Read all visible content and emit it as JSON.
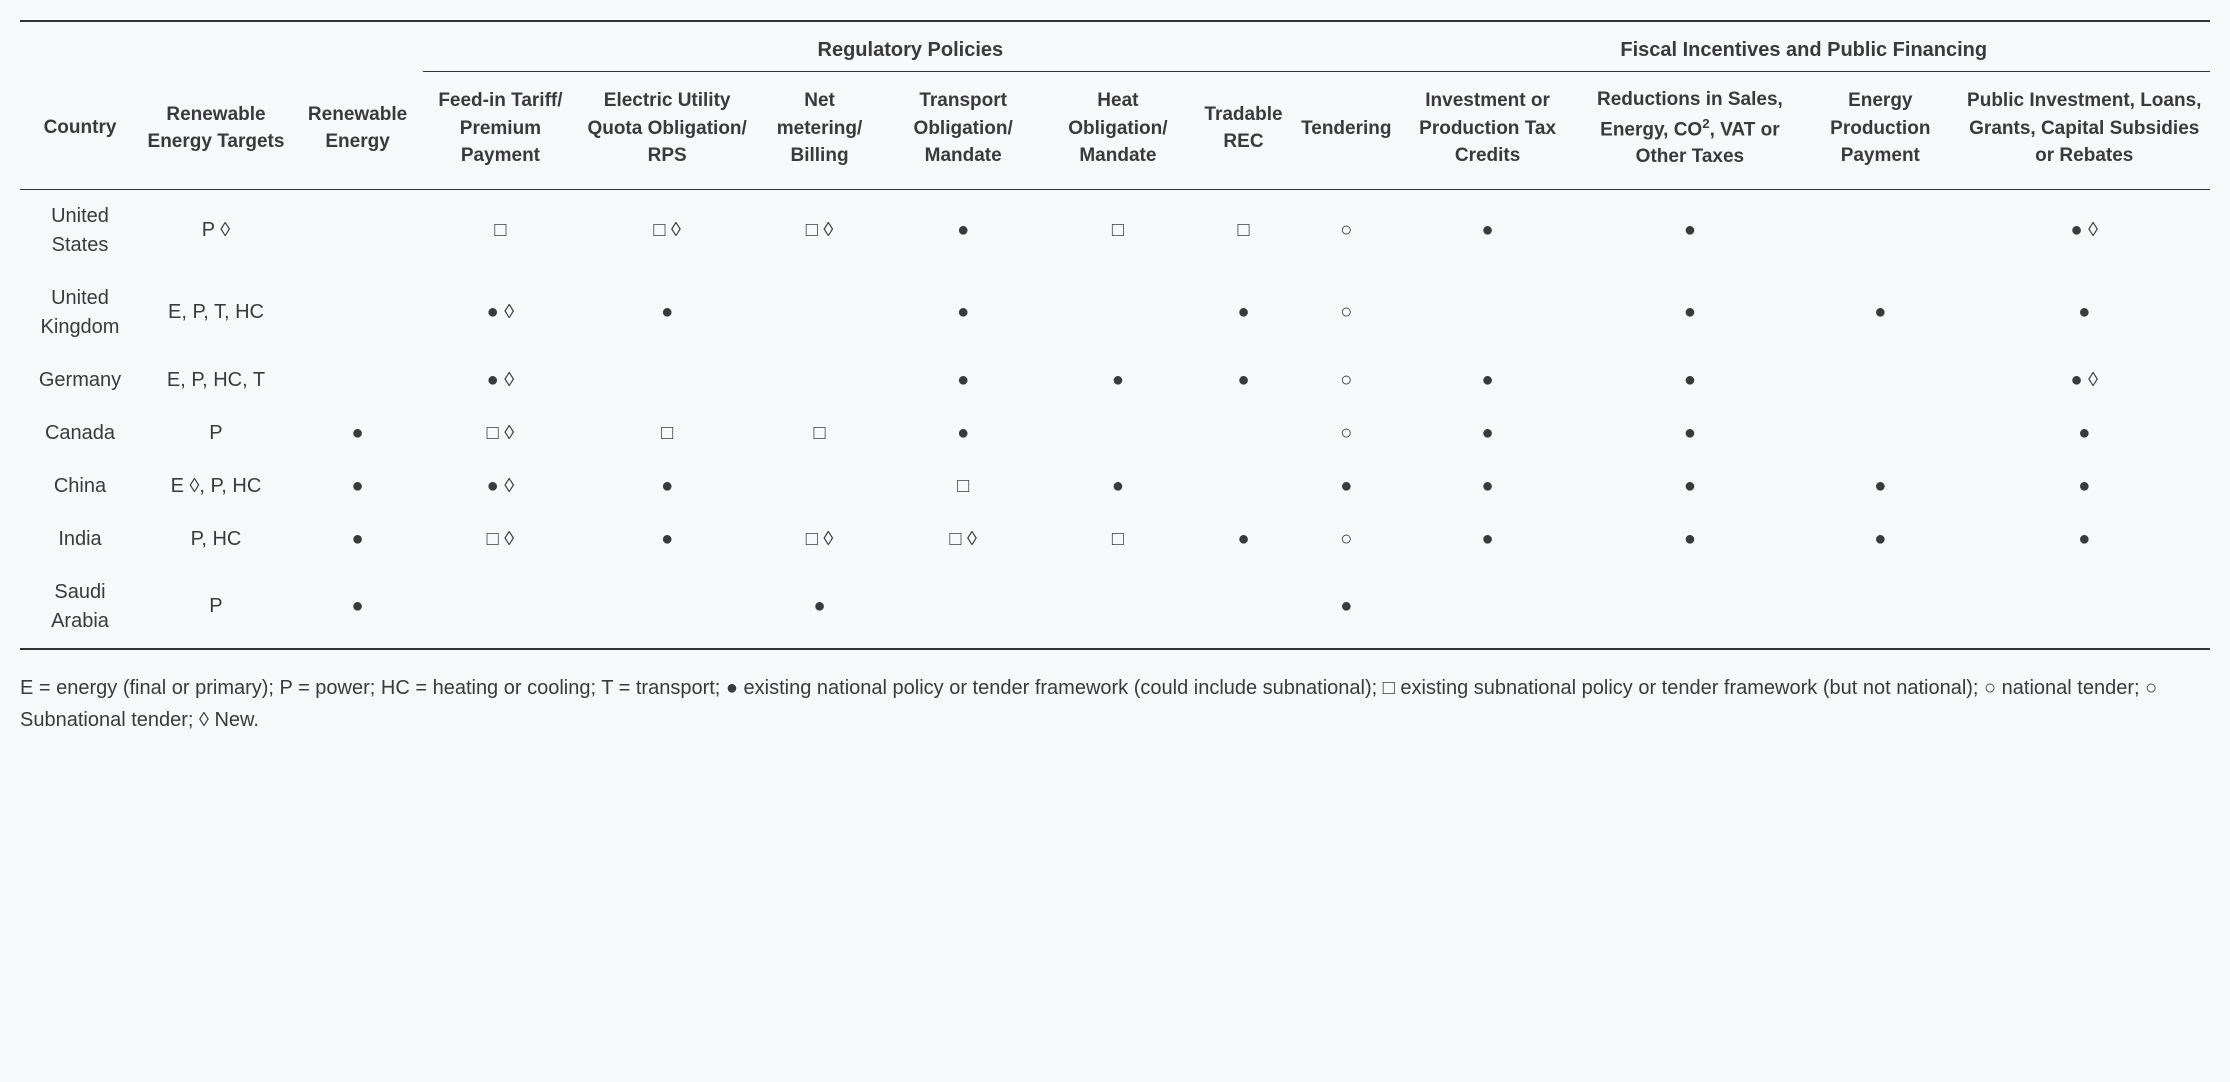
{
  "type": "table",
  "background_color": "#f7f8f9",
  "text_color": "#3a3a3a",
  "border_color": "#333333",
  "fonts": {
    "family": "Arial",
    "header_size_pt": 14,
    "body_size_pt": 15,
    "legend_size_pt": 15
  },
  "groups": {
    "regulatory": "Regulatory Policies",
    "fiscal": "Fiscal Incentives and Public Financing"
  },
  "columns": {
    "country": "Country",
    "targets": "Renewable Energy Targets",
    "renewable": "Renewable Energy",
    "feed_in": "Feed-in Tariff/ Premium Payment",
    "quota": "Electric Utility Quota Obligation/ RPS",
    "net": "Net metering/ Billing",
    "transport": "Transport Obligation/ Mandate",
    "heat": "Heat Obligation/ Mandate",
    "rec": "Tradable REC",
    "tendering": "Tendering",
    "investment": "Investment or Production Tax Credits",
    "reductions_pre": "Reductions in Sales, Energy, CO",
    "reductions_sup": "2",
    "reductions_post": ", VAT or Other Taxes",
    "prod_pay": "Energy Production Payment",
    "public_inv": "Public Investment, Loans, Grants, Capital Subsidies or Rebates"
  },
  "symbols": {
    "filled": "●",
    "square": "□",
    "circle_o": "○",
    "diamond": "◊"
  },
  "rows": [
    {
      "country": "United States",
      "targets": "P ◊",
      "renewable": "",
      "feed_in": "□",
      "quota": "□ ◊",
      "net": "□ ◊",
      "transport": "●",
      "heat": "□",
      "rec": "□",
      "tendering": "○",
      "investment": "●",
      "reductions": "●",
      "prod_pay": "",
      "public_inv": "● ◊"
    },
    {
      "country": "United Kingdom",
      "targets": "E, P, T, HC",
      "renewable": "",
      "feed_in": "● ◊",
      "quota": "●",
      "net": "",
      "transport": "●",
      "heat": "",
      "rec": "●",
      "tendering": "○",
      "investment": "",
      "reductions": "●",
      "prod_pay": "●",
      "public_inv": "●"
    },
    {
      "country": "Germany",
      "targets": "E, P, HC, T",
      "renewable": "",
      "feed_in": "● ◊",
      "quota": "",
      "net": "",
      "transport": "●",
      "heat": "●",
      "rec": "●",
      "tendering": "○",
      "investment": "●",
      "reductions": "●",
      "prod_pay": "",
      "public_inv": "● ◊"
    },
    {
      "country": "Canada",
      "targets": "P",
      "renewable": "●",
      "feed_in": "□ ◊",
      "quota": "□",
      "net": "□",
      "transport": "●",
      "heat": "",
      "rec": "",
      "tendering": "○",
      "investment": "●",
      "reductions": "●",
      "prod_pay": "",
      "public_inv": "●"
    },
    {
      "country": "China",
      "targets": "E ◊, P, HC",
      "renewable": "●",
      "feed_in": "● ◊",
      "quota": "●",
      "net": "",
      "transport": "□",
      "heat": "●",
      "rec": "",
      "tendering": "●",
      "investment": "●",
      "reductions": "●",
      "prod_pay": "●",
      "public_inv": "●"
    },
    {
      "country": "India",
      "targets": "P, HC",
      "renewable": "●",
      "feed_in": "□ ◊",
      "quota": "●",
      "net": "□ ◊",
      "transport": "□ ◊",
      "heat": "□",
      "rec": "●",
      "tendering": "○",
      "investment": "●",
      "reductions": "●",
      "prod_pay": "●",
      "public_inv": "●"
    },
    {
      "country": "Saudi Arabia",
      "targets": "P",
      "renewable": "●",
      "feed_in": "",
      "quota": "",
      "net": "●",
      "transport": "",
      "heat": "",
      "rec": "",
      "tendering": "●",
      "investment": "",
      "reductions": "",
      "prod_pay": "",
      "public_inv": ""
    }
  ],
  "legend": "E = energy (final or primary); P = power; HC = heating or cooling; T = transport; ● existing national policy or tender framework (could include subnational); □ existing subnational policy or tender framework (but not national); ○ national tender; ○ Subnational tender; ◊ New."
}
